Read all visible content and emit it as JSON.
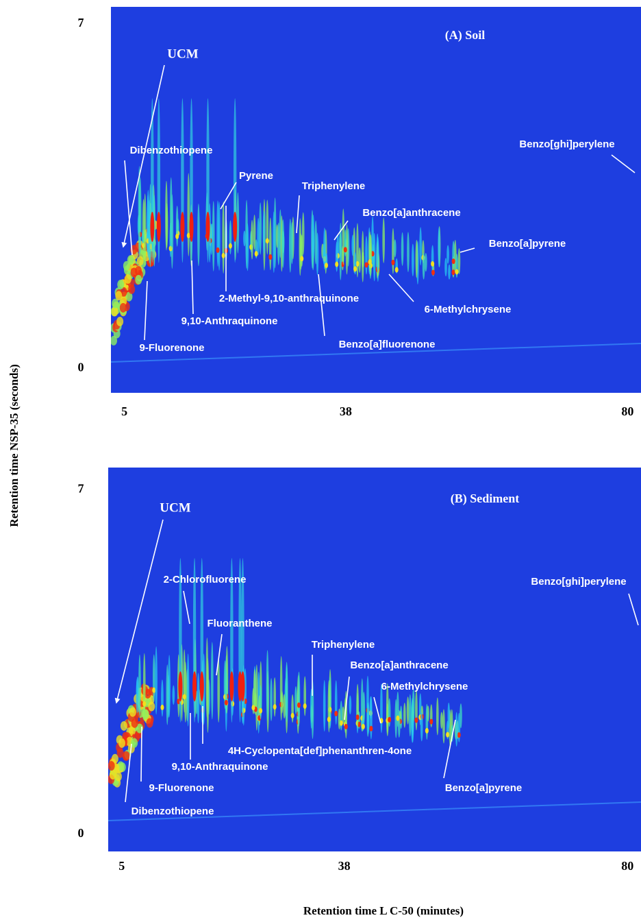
{
  "figure": {
    "xlabel": "Retention time L C-50 (minutes)",
    "ylabel": "Retention time NSP-35 (seconds)"
  },
  "chart_data": [
    {
      "type": "contour",
      "title": "(A) Soil",
      "xlim": [
        3,
        82
      ],
      "xticks": [
        5,
        38,
        80
      ],
      "ylim": [
        -0.5,
        7.35
      ],
      "yticks": [
        0,
        7
      ],
      "annotations": [
        "UCM",
        "Dibenzothiopene",
        "Pyrene",
        "Triphenylene",
        "Benzo[a]anthracene",
        "Benzo[a]pyrene",
        "Benzo[ghi]perylene",
        "2-Methyl-9,10-anthraquinone",
        "9,10-Anthraquinone",
        "6-Methylchrysene",
        "9-Fluorenone",
        "Benzo[a]fluorenone"
      ]
    },
    {
      "type": "contour",
      "title": "(B) Sediment",
      "xlim": [
        3,
        82
      ],
      "xticks": [
        5,
        38,
        80
      ],
      "ylim": [
        -0.35,
        7.45
      ],
      "yticks": [
        0,
        7
      ],
      "annotations": [
        "UCM",
        "2-Chlorofluorene",
        "Fluoranthene",
        "Triphenylene",
        "Benzo[a]anthracene",
        "6-Methylchrysene",
        "Benzo[ghi]perylene",
        "4H-Cyclopenta[def]phenanthren-4one",
        "9,10-Anthraquinone",
        "9-Fluorenone",
        "Dibenzothiopene",
        "Benzo[a]pyrene"
      ]
    }
  ]
}
